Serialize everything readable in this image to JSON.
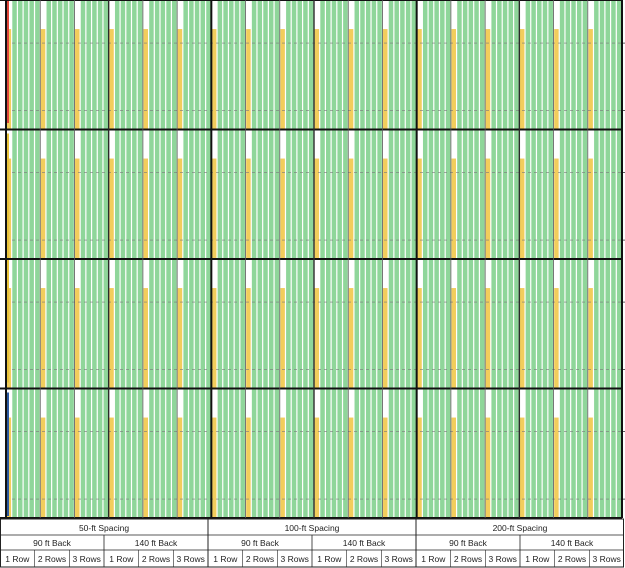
{
  "chart_data": {
    "type": "bar",
    "title": "",
    "xlabel": "",
    "ylabel": "",
    "colors": {
      "green": "#8fd69a",
      "yellow": "#f2cd5c",
      "grid_dash": "#7a7a7a",
      "panel_border": "#111111",
      "red_marker": "#e0463a",
      "yellow_marker": "#e8c23a",
      "blue_marker": "#2c5aa0"
    },
    "panel_rows": 4,
    "green_bar_value": 1.0,
    "yellow_bar_value": 0.78,
    "spacings": [
      {
        "label": "50-ft Spacing",
        "setbacks": [
          {
            "label": "90 ft Back",
            "rows": [
              "1 Row",
              "2 Rows",
              "3 Rows"
            ]
          },
          {
            "label": "140 ft Back",
            "rows": [
              "1 Row",
              "2 Rows",
              "3 Rows"
            ]
          }
        ]
      },
      {
        "label": "100-ft Spacing",
        "setbacks": [
          {
            "label": "90 ft Back",
            "rows": [
              "1 Row",
              "2 Rows",
              "3 Rows"
            ]
          },
          {
            "label": "140 ft Back",
            "rows": [
              "1 Row",
              "2 Rows",
              "3 Rows"
            ]
          }
        ]
      },
      {
        "label": "200-ft Spacing",
        "setbacks": [
          {
            "label": "90 ft Back",
            "rows": [
              "1 Row",
              "2 Rows",
              "3 Rows"
            ]
          },
          {
            "label": "140 ft Back",
            "rows": [
              "1 Row",
              "2 Rows",
              "3 Rows"
            ]
          }
        ]
      }
    ]
  }
}
